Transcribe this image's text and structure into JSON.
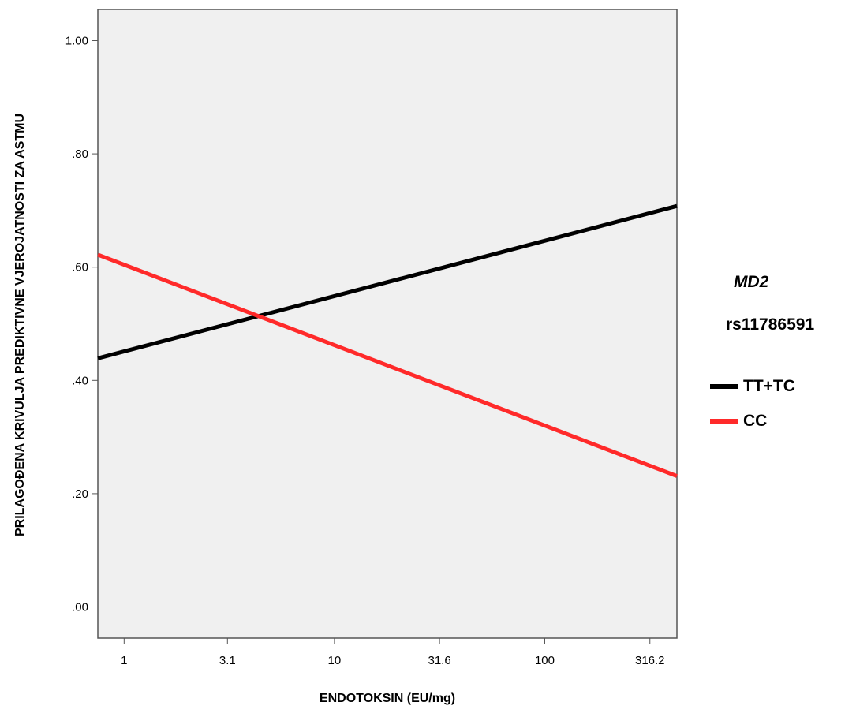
{
  "chart_data": {
    "type": "line",
    "xlabel": "ENDOTOKSIN (EU/mg)",
    "ylabel": "PRILAGOĐENA KRIVULJA PREDIKTIVNE VJEROJATNOSTI ZA ASTMU",
    "x_scale": "log10",
    "x_ticks": [
      1,
      3.1,
      10,
      31.6,
      100,
      316.2
    ],
    "x_tick_labels": [
      "1",
      "3.1",
      "10",
      "31.6",
      "100",
      "316.2"
    ],
    "xlim": [
      0.75,
      425
    ],
    "y_ticks": [
      0,
      0.2,
      0.4,
      0.6,
      0.8,
      1.0
    ],
    "y_tick_labels": [
      ".00",
      ".20",
      ".40",
      ".60",
      ".80",
      "1.00"
    ],
    "ylim": [
      -0.055,
      1.055
    ],
    "grid": false,
    "plot_background": "#f0f0f0",
    "legend": {
      "placement": "right",
      "title_line1": "MD2",
      "title_line2": "rs11786591",
      "entries": [
        "TT+TC",
        "CC"
      ]
    },
    "series": [
      {
        "name": "TT+TC",
        "color": "#000000",
        "x": [
          0.75,
          425
        ],
        "y": [
          0.439,
          0.708
        ]
      },
      {
        "name": "CC",
        "color": "#ff2a2a",
        "x": [
          0.75,
          425
        ],
        "y": [
          0.622,
          0.231
        ]
      }
    ]
  }
}
